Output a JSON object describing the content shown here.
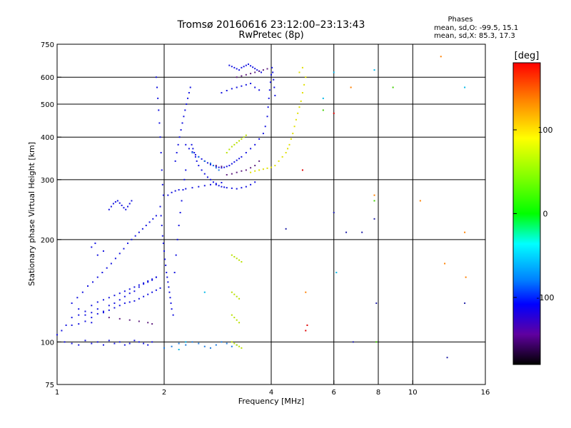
{
  "chart_data": {
    "type": "scatter",
    "title": "Tromsø 20160616 23:12:00–23:13:43",
    "subtitle": "RwPretec (8p)",
    "xlabel": "Frequency [MHz]",
    "ylabel": "Stationary phase Virtual Height [km]",
    "x_scale": "log",
    "y_scale": "log",
    "xlim": [
      1,
      16
    ],
    "ylim": [
      75,
      750
    ],
    "x_ticks": [
      1,
      2,
      4,
      6,
      8,
      10,
      16
    ],
    "x_tick_labels": [
      "1",
      "2",
      "4",
      "6",
      "8",
      "10",
      "16"
    ],
    "x_gridlines": [
      2,
      4,
      6,
      8,
      10
    ],
    "y_ticks": [
      75,
      100,
      200,
      300,
      400,
      500,
      600,
      750
    ],
    "y_tick_labels": [
      "75",
      "100",
      "200",
      "300",
      "400",
      "500",
      "600",
      "750"
    ],
    "y_gridlines": [
      100,
      200,
      300,
      400,
      500,
      600
    ],
    "grid": true,
    "info_box": {
      "heading": "Phases",
      "line_o": "mean, sd,O:  -99.5, 15.1",
      "line_x": "mean, sd,X:  85.3, 17.3"
    },
    "colorbar": {
      "label": "[deg]",
      "range": [
        -180,
        180
      ],
      "ticks": [
        100,
        0,
        -100
      ],
      "tick_labels": [
        "100",
        "0",
        "-100"
      ],
      "stops": [
        {
          "offset": 0.0,
          "color": "#ff0000"
        },
        {
          "offset": 0.12,
          "color": "#ff8000"
        },
        {
          "offset": 0.25,
          "color": "#ffff00"
        },
        {
          "offset": 0.38,
          "color": "#80ff00"
        },
        {
          "offset": 0.5,
          "color": "#00ff00"
        },
        {
          "offset": 0.6,
          "color": "#00ffff"
        },
        {
          "offset": 0.72,
          "color": "#0080ff"
        },
        {
          "offset": 0.8,
          "color": "#0000ff"
        },
        {
          "offset": 0.9,
          "color": "#6000a0"
        },
        {
          "offset": 1.0,
          "color": "#000000"
        }
      ]
    },
    "point_colors": {
      "blue": "#1515e0",
      "dark_blue": "#2020a8",
      "purple": "#602080",
      "light_blue": "#1a7ae0",
      "yellow": "#e0e000",
      "yellow_green": "#b8e000",
      "cyan": "#00b8e8",
      "orange": "#ff8000",
      "red": "#e00000",
      "green": "#40d000"
    },
    "series": [
      {
        "phase": "blue",
        "x": [
          1.0,
          1.03,
          1.06,
          1.1,
          1.15,
          1.2,
          1.25,
          1.3,
          1.35,
          1.4,
          1.45,
          1.5,
          1.55,
          1.6,
          1.65,
          1.7,
          1.75,
          1.8,
          1.85,
          1.9,
          1.05,
          1.1,
          1.15,
          1.2,
          1.25,
          1.3,
          1.35,
          1.4,
          1.45,
          1.5,
          1.55,
          1.6,
          1.65,
          1.7,
          1.75,
          1.8,
          1.85,
          1.1,
          1.14,
          1.18,
          1.22,
          1.26,
          1.3,
          1.34,
          1.38,
          1.42,
          1.46,
          1.5,
          1.54,
          1.58,
          1.62,
          1.66,
          1.7,
          1.74,
          1.78,
          1.82,
          1.86,
          1.9,
          1.2,
          1.25,
          1.3,
          1.35,
          1.4,
          1.45,
          1.5,
          1.55,
          1.6,
          1.65,
          1.7,
          1.75,
          1.8,
          1.85,
          1.9,
          1.95,
          1.1,
          1.15,
          1.2,
          1.25,
          1.15,
          1.25,
          1.3,
          1.35,
          1.4,
          1.45,
          1.5,
          1.55,
          1.6,
          1.65,
          1.7,
          1.75,
          1.8,
          1.85,
          1.9,
          1.4,
          1.42,
          1.44,
          1.46,
          1.48,
          1.5,
          1.52,
          1.54,
          1.56,
          1.58,
          1.6,
          1.62,
          1.3,
          1.35,
          1.25,
          1.28
        ],
        "y": [
          105,
          108,
          112,
          118,
          120,
          123,
          118,
          125,
          122,
          128,
          130,
          133,
          136,
          139,
          141,
          145,
          148,
          150,
          152,
          155,
          100,
          99,
          98,
          101,
          99,
          100,
          98,
          101,
          99,
          100,
          98,
          99,
          101,
          100,
          99,
          98,
          100,
          130,
          135,
          140,
          146,
          150,
          155,
          160,
          165,
          170,
          176,
          182,
          188,
          195,
          200,
          205,
          210,
          215,
          220,
          225,
          230,
          235,
          120,
          122,
          121,
          123,
          124,
          126,
          128,
          130,
          131,
          132,
          134,
          136,
          138,
          140,
          142,
          144,
          112,
          113,
          115,
          114,
          125,
          128,
          131,
          133,
          135,
          137,
          139,
          141,
          143,
          145,
          147,
          149,
          151,
          153,
          155,
          245,
          250,
          255,
          258,
          260,
          256,
          252,
          248,
          245,
          250,
          255,
          260,
          180,
          185,
          190,
          195
        ]
      },
      {
        "phase": "blue",
        "x": [
          1.9,
          1.91,
          1.92,
          1.93,
          1.94,
          1.95,
          1.96,
          1.97,
          1.98,
          1.99,
          1.95,
          1.96,
          1.97,
          1.98,
          1.99,
          2.0,
          2.01,
          2.02,
          2.03,
          2.04,
          2.05,
          2.06,
          2.07,
          2.08,
          2.09,
          2.1,
          2.12,
          2.14,
          2.16,
          2.18,
          2.2,
          2.22,
          2.24,
          2.26,
          2.28,
          2.3,
          2.15,
          2.17,
          2.19,
          2.21,
          2.23,
          2.25,
          2.27,
          2.29,
          2.31,
          2.33,
          2.35,
          2.37,
          2.39,
          2.41,
          2.43,
          2.45,
          2.47,
          2.5,
          2.55,
          2.6,
          2.65,
          2.7,
          2.75,
          2.8,
          2.85,
          2.9,
          2.95,
          3.0,
          3.1,
          3.2,
          3.3,
          3.4,
          3.5,
          3.6,
          2.05,
          2.1,
          2.15,
          2.2,
          2.3,
          2.4,
          2.5,
          2.6,
          2.7,
          2.8,
          2.9
        ],
        "y": [
          600,
          560,
          520,
          480,
          440,
          400,
          360,
          320,
          290,
          270,
          250,
          235,
          220,
          205,
          195,
          185,
          175,
          168,
          160,
          155,
          150,
          145,
          140,
          135,
          130,
          125,
          120,
          160,
          180,
          200,
          220,
          240,
          260,
          280,
          300,
          320,
          340,
          360,
          380,
          400,
          420,
          440,
          460,
          480,
          500,
          520,
          540,
          560,
          380,
          370,
          360,
          350,
          340,
          330,
          320,
          312,
          305,
          300,
          295,
          290,
          288,
          286,
          285,
          284,
          283,
          282,
          284,
          286,
          290,
          295,
          270,
          275,
          278,
          280,
          282,
          284,
          286,
          288,
          290,
          292,
          294
        ]
      },
      {
        "phase": "blue",
        "x": [
          2.3,
          2.35,
          2.4,
          2.45,
          2.5,
          2.55,
          2.6,
          2.65,
          2.7,
          2.75,
          2.8,
          2.85,
          2.9,
          2.95,
          3.0,
          3.05,
          3.1,
          3.15,
          3.2,
          3.25,
          3.3,
          3.4,
          3.5,
          3.6,
          3.7,
          3.8,
          3.85,
          3.9,
          3.92,
          3.94,
          3.96,
          3.98,
          4.0,
          4.02,
          4.04,
          4.06,
          4.08,
          4.1,
          2.9,
          3.0,
          3.1,
          3.2,
          3.3,
          3.4,
          3.5,
          3.6,
          3.7,
          3.05,
          3.1,
          3.15,
          3.2,
          3.25,
          3.3,
          3.35,
          3.4,
          3.45,
          3.5,
          3.55,
          3.6,
          3.65,
          3.7,
          3.75
        ],
        "y": [
          380,
          370,
          362,
          355,
          350,
          345,
          340,
          336,
          332,
          330,
          328,
          326,
          325,
          326,
          328,
          330,
          334,
          338,
          342,
          346,
          350,
          360,
          370,
          380,
          395,
          410,
          430,
          460,
          490,
          520,
          550,
          580,
          610,
          640,
          620,
          590,
          560,
          530,
          540,
          548,
          555,
          560,
          565,
          570,
          575,
          560,
          550,
          650,
          645,
          640,
          635,
          630,
          640,
          645,
          650,
          655,
          648,
          642,
          636,
          630,
          625,
          620
        ]
      },
      {
        "phase": "purple",
        "x": [
          1.4,
          1.5,
          1.6,
          1.7,
          1.8,
          1.85,
          3.0,
          3.1,
          3.2,
          3.3,
          3.4,
          3.5,
          3.6,
          3.7,
          3.2,
          3.3,
          3.4,
          3.5,
          3.6,
          3.7,
          3.8,
          3.9,
          2.6,
          2.7,
          2.8,
          2.9
        ],
        "y": [
          118,
          117,
          116,
          115,
          114,
          113,
          310,
          312,
          315,
          318,
          320,
          325,
          330,
          340,
          600,
          605,
          610,
          615,
          620,
          625,
          630,
          635,
          340,
          335,
          330,
          328
        ]
      },
      {
        "phase": "light_blue",
        "x": [
          2.0,
          2.1,
          2.2,
          2.3,
          2.4,
          2.5,
          2.6,
          2.7,
          2.8,
          2.9,
          3.0,
          3.1,
          3.2,
          2.4,
          2.5,
          2.6,
          2.7,
          2.75,
          2.8,
          2.85
        ],
        "y": [
          96,
          97,
          99,
          98,
          100,
          99,
          97,
          96,
          98,
          100,
          99,
          97,
          98,
          360,
          350,
          340,
          335,
          330,
          325,
          320
        ]
      },
      {
        "phase": "yellow",
        "x": [
          3.5,
          3.6,
          3.7,
          3.8,
          3.9,
          4.0,
          4.1,
          4.2,
          4.3,
          4.4,
          4.45,
          4.5,
          4.55,
          4.6,
          4.65,
          4.7,
          4.75,
          4.8,
          4.85,
          4.9,
          4.95,
          5.0,
          4.8,
          4.9
        ],
        "y": [
          315,
          318,
          320,
          322,
          324,
          326,
          330,
          340,
          350,
          360,
          370,
          380,
          395,
          410,
          430,
          450,
          470,
          490,
          510,
          540,
          570,
          600,
          620,
          640
        ]
      },
      {
        "phase": "yellow_green",
        "x": [
          3.0,
          3.05,
          3.1,
          3.15,
          3.2,
          3.25,
          3.3,
          3.35,
          3.4,
          3.1,
          3.15,
          3.2,
          3.25,
          3.3,
          3.1,
          3.15,
          3.2,
          3.25,
          3.1,
          3.15,
          3.2,
          3.25,
          3.3,
          3.1,
          3.15,
          3.2,
          3.25
        ],
        "y": [
          360,
          368,
          375,
          380,
          385,
          390,
          395,
          400,
          405,
          180,
          178,
          176,
          174,
          172,
          120,
          118,
          116,
          114,
          100,
          99,
          98,
          97,
          96,
          140,
          138,
          136,
          134
        ]
      },
      {
        "phase": "cyan",
        "x": [
          2.6,
          6.0,
          7.8,
          5.6,
          6.1,
          14.0,
          2.2,
          2.3
        ],
        "y": [
          140,
          620,
          630,
          520,
          160,
          560,
          95,
          100
        ]
      },
      {
        "phase": "orange",
        "x": [
          12.0,
          14.0,
          10.5,
          7.8,
          6.7,
          5.0,
          12.3,
          14.1
        ],
        "y": [
          690,
          210,
          260,
          270,
          560,
          140,
          170,
          155
        ]
      },
      {
        "phase": "red",
        "x": [
          5.0,
          5.05,
          6.0,
          4.9
        ],
        "y": [
          108,
          112,
          470,
          320
        ]
      },
      {
        "phase": "green",
        "x": [
          8.8,
          7.8,
          5.6,
          7.9
        ],
        "y": [
          560,
          260,
          480,
          100
        ]
      },
      {
        "phase": "dark_blue",
        "x": [
          6.0,
          6.5,
          6.8,
          7.2,
          7.8,
          7.9,
          4.4,
          14.0,
          12.5
        ],
        "y": [
          240,
          210,
          100,
          210,
          230,
          130,
          215,
          130,
          90
        ]
      }
    ]
  }
}
